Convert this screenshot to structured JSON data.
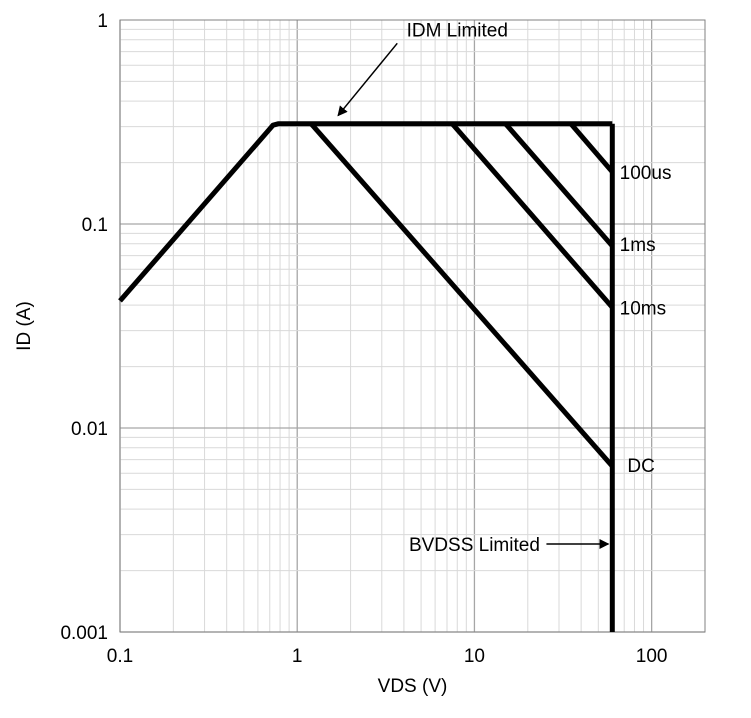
{
  "chart_data": {
    "type": "line",
    "title": "",
    "xlabel": "VDS (V)",
    "ylabel": "ID (A)",
    "xscale": "log",
    "yscale": "log",
    "xlim": [
      0.1,
      200
    ],
    "ylim": [
      0.001,
      1
    ],
    "grid": true,
    "xticks": [
      0.1,
      1,
      10,
      100
    ],
    "xtick_labels": [
      "0.1",
      "1",
      "10",
      "100"
    ],
    "yticks": [
      0.001,
      0.01,
      0.1,
      1
    ],
    "ytick_labels": [
      "0.001",
      "0.01",
      "0.1",
      "1"
    ],
    "colors": {
      "line": "#000000",
      "grid": "#a6a6a6",
      "minor_grid": "#d9d9d9"
    },
    "series": [
      {
        "name": "",
        "x": [
          0.1,
          0.73,
          0.78,
          60
        ],
        "y": [
          0.042,
          0.305,
          0.31,
          0.31
        ]
      },
      {
        "name": "",
        "x": [
          60,
          60
        ],
        "y": [
          0.31,
          0.001
        ]
      },
      {
        "name": "DC",
        "x": [
          1.2,
          60
        ],
        "y": [
          0.31,
          0.0065
        ]
      },
      {
        "name": "10ms",
        "x": [
          7.5,
          60
        ],
        "y": [
          0.31,
          0.039
        ]
      },
      {
        "name": "1ms",
        "x": [
          15,
          60
        ],
        "y": [
          0.31,
          0.078
        ]
      },
      {
        "name": "100us",
        "x": [
          35,
          60
        ],
        "y": [
          0.31,
          0.18
        ]
      }
    ],
    "curve_labels": [
      {
        "text": "100us",
        "x": 66,
        "y": 0.18
      },
      {
        "text": "1ms",
        "x": 66,
        "y": 0.08
      },
      {
        "text": "10ms",
        "x": 66,
        "y": 0.039
      },
      {
        "text": "DC",
        "x": 73,
        "y": 0.0066
      }
    ],
    "annotations": [
      {
        "text": "IDM Limited",
        "x": 8,
        "y": 0.9,
        "arrow_to": [
          1.7,
          0.34
        ]
      },
      {
        "text": "BVDSS Limited",
        "x": 10,
        "y": 0.0027,
        "arrow_to": [
          57,
          0.0027
        ]
      }
    ]
  }
}
